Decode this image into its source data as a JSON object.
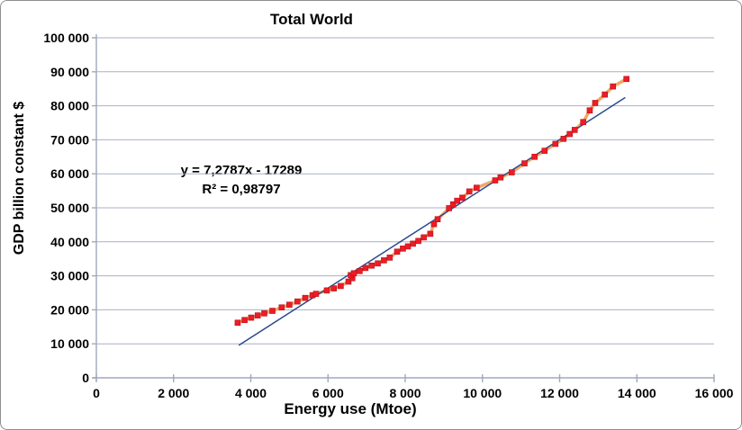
{
  "chart": {
    "title": "Total World",
    "xlabel": "Energy use (Mtoe)",
    "ylabel": "GDP billion constant $",
    "equation_line1": "y = 7,2787x - 17289",
    "equation_line2": "R² = 0,98797"
  },
  "colors": {
    "grid": "#a9b0c2",
    "axis": "#a0a8ba",
    "series_line": "#f2a766",
    "marker_fill": "#ee1c25",
    "marker_edge": "#b5131a",
    "trendline": "#2b4a8b",
    "text": "#000000"
  },
  "chart_data": {
    "type": "scatter",
    "title": "Total World",
    "xlabel": "Energy use (Mtoe)",
    "ylabel": "GDP billion constant $",
    "xlim": [
      0,
      16000
    ],
    "ylim": [
      0,
      100000
    ],
    "grid": "horizontal",
    "legend": "none",
    "x_tick_values": [
      0,
      2000,
      4000,
      6000,
      8000,
      10000,
      12000,
      14000,
      16000
    ],
    "x_tick_labels": [
      "0",
      "2 000",
      "4 000",
      "6 000",
      "8 000",
      "10 000",
      "12 000",
      "14 000",
      "16 000"
    ],
    "y_tick_values": [
      0,
      10000,
      20000,
      30000,
      40000,
      50000,
      60000,
      70000,
      80000,
      90000,
      100000
    ],
    "y_tick_labels": [
      "0",
      "10 000",
      "20 000",
      "30 000",
      "40 000",
      "50 000",
      "60 000",
      "70 000",
      "80 000",
      "90 000",
      "100 000"
    ],
    "series": [
      {
        "name": "World GDP vs energy use (yearly points)",
        "marker": "square",
        "points": [
          [
            3660,
            16200
          ],
          [
            3840,
            17000
          ],
          [
            4010,
            17700
          ],
          [
            4180,
            18350
          ],
          [
            4350,
            18950
          ],
          [
            4560,
            19700
          ],
          [
            4800,
            20700
          ],
          [
            5000,
            21500
          ],
          [
            5210,
            22450
          ],
          [
            5410,
            23500
          ],
          [
            5600,
            24300
          ],
          [
            5690,
            24700
          ],
          [
            5970,
            25700
          ],
          [
            6150,
            26300
          ],
          [
            6330,
            27000
          ],
          [
            6530,
            28300
          ],
          [
            6630,
            29300
          ],
          [
            6590,
            30200
          ],
          [
            6670,
            30750
          ],
          [
            6820,
            31400
          ],
          [
            6970,
            32300
          ],
          [
            7130,
            33000
          ],
          [
            7290,
            33650
          ],
          [
            7450,
            34550
          ],
          [
            7600,
            35350
          ],
          [
            7790,
            37100
          ],
          [
            7940,
            38000
          ],
          [
            8070,
            38650
          ],
          [
            8200,
            39450
          ],
          [
            8340,
            40250
          ],
          [
            8480,
            41300
          ],
          [
            8650,
            42350
          ],
          [
            8745,
            45210
          ],
          [
            8840,
            46640
          ],
          [
            9135,
            49880
          ],
          [
            9240,
            51015
          ],
          [
            9345,
            52070
          ],
          [
            9480,
            52970
          ],
          [
            9660,
            54800
          ],
          [
            9850,
            55900
          ],
          [
            10330,
            58060
          ],
          [
            10470,
            58930
          ],
          [
            10760,
            60430
          ],
          [
            11090,
            63070
          ],
          [
            11350,
            65000
          ],
          [
            11610,
            66770
          ],
          [
            11890,
            68800
          ],
          [
            12100,
            70280
          ],
          [
            12260,
            71700
          ],
          [
            12390,
            72900
          ],
          [
            12610,
            75210
          ],
          [
            12780,
            78640
          ],
          [
            12920,
            80830
          ],
          [
            13170,
            83310
          ],
          [
            13380,
            85690
          ],
          [
            13730,
            87880
          ]
        ]
      }
    ],
    "trendline": {
      "type": "linear",
      "slope": 7.2787,
      "intercept": -17289,
      "x_start": 3690,
      "x_end": 13700,
      "equation": "y = 7,2787x - 17289",
      "r_squared": "R² = 0,98797"
    }
  }
}
